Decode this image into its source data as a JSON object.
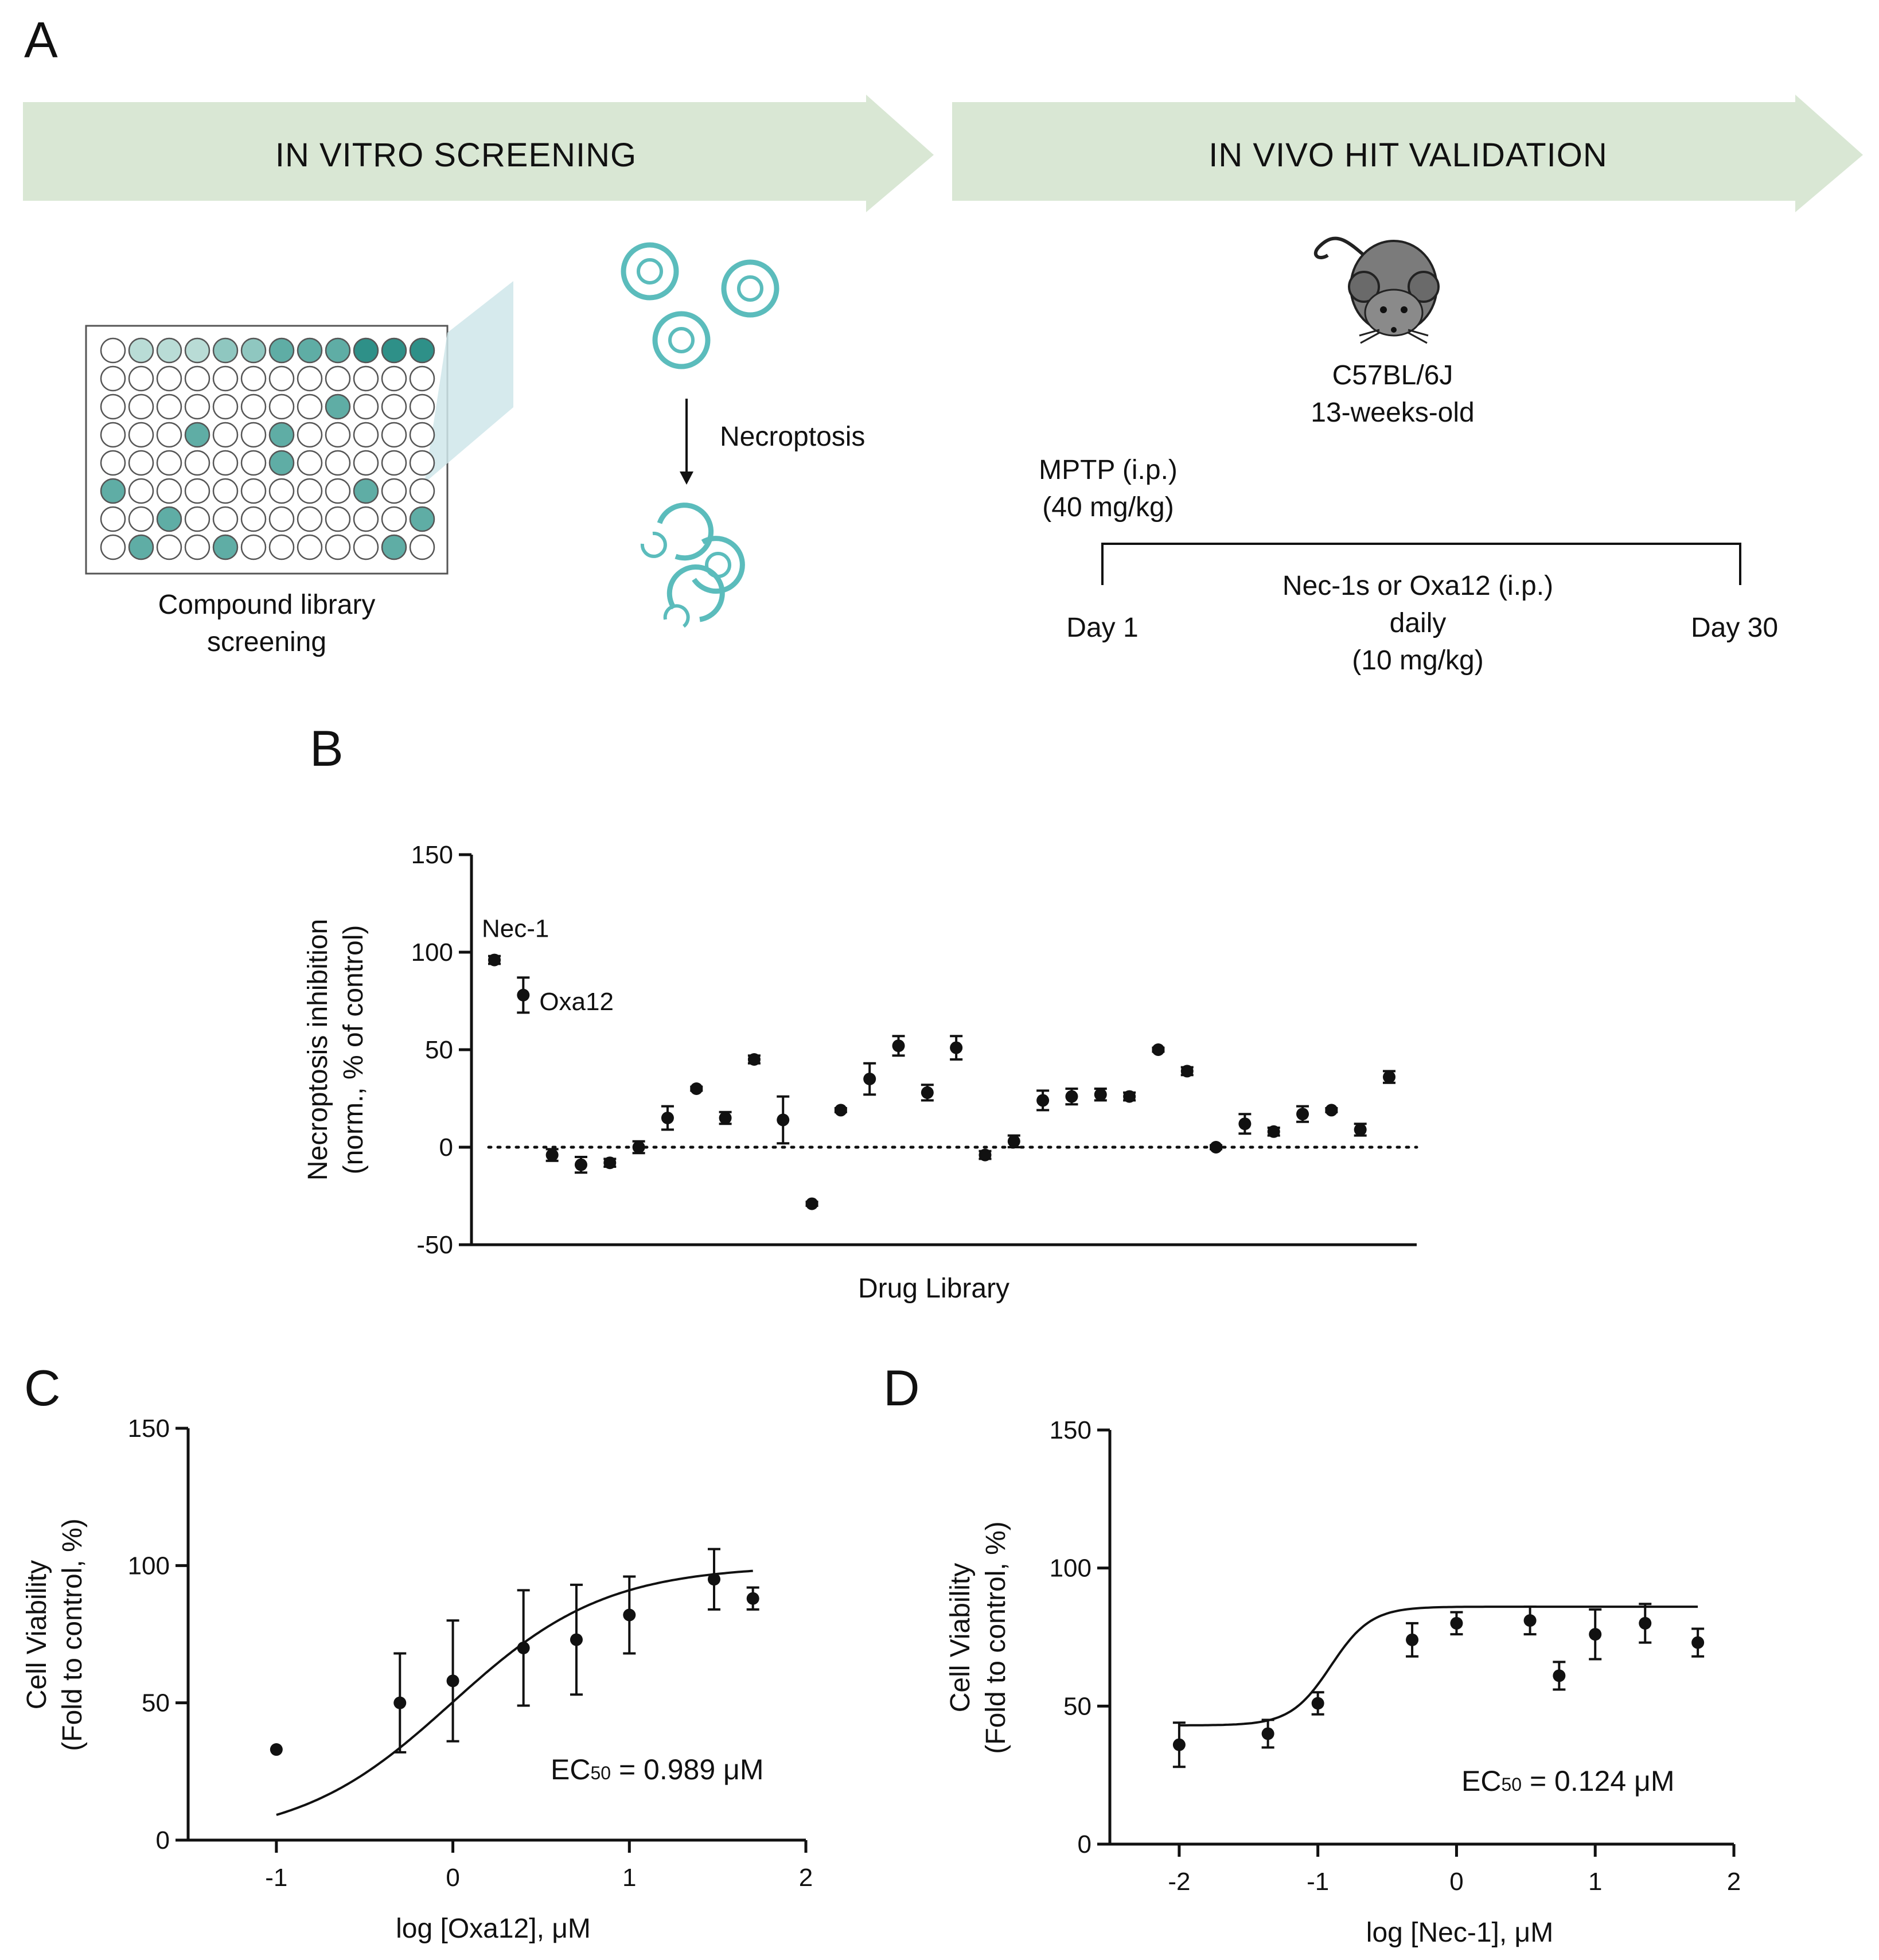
{
  "colors": {
    "banner": "#d9e7d4",
    "teal": "#5bbcbc",
    "well_fill": "#5fada5",
    "well_light": "#b9dcd6",
    "well_mid": "#8fc7c0",
    "well_dark": "#2e9088",
    "mouse_body": "#7b7b7b",
    "ink": "#111111"
  },
  "icons": {
    "mouse": "mouse-icon",
    "plate": "well-plate-icon",
    "cell": "cell-icon",
    "arrow": "arrow-down-icon"
  },
  "panel_a": {
    "letter": "A",
    "banner_left": "IN VITRO SCREENING",
    "banner_right": "IN VIVO HIT VALIDATION",
    "plate_caption_1": "Compound library",
    "plate_caption_2": "screening",
    "necroptosis_label": "Necroptosis",
    "mouse_strain": "C57BL/6J",
    "mouse_age": "13-weeks-old",
    "mptp_line1": "MPTP (i.p.)",
    "mptp_line2": "(40 mg/kg)",
    "day_start": "Day 1",
    "day_end": "Day 30",
    "treatment_line1": "Nec-1s or Oxa12 (i.p.)",
    "treatment_line2": "daily",
    "treatment_line3": "(10 mg/kg)"
  },
  "chart_data": [
    {
      "panel": "B",
      "type": "scatter",
      "xlabel": "Drug Library",
      "ylabel_line1": "Necroptosis inhibition",
      "ylabel_line2": "(norm., % of control)",
      "ylim": [
        -50,
        150
      ],
      "yticks": [
        150,
        100,
        50,
        0,
        -50
      ],
      "reference_line": 0,
      "annotations": [
        {
          "text": "Nec-1",
          "index": 1
        },
        {
          "text": "Oxa12",
          "index": 2
        }
      ],
      "x": [
        1,
        2,
        3,
        4,
        5,
        6,
        7,
        8,
        9,
        10,
        11,
        12,
        13,
        14,
        15,
        16,
        17,
        18,
        19,
        20,
        21,
        22,
        23,
        24,
        25,
        26,
        27,
        28,
        29,
        30,
        31,
        32
      ],
      "values": [
        96,
        78,
        -4,
        -9,
        -8,
        0,
        15,
        30,
        15,
        45,
        14,
        -29,
        19,
        35,
        52,
        28,
        51,
        -4,
        3,
        24,
        26,
        27,
        26,
        50,
        39,
        0,
        12,
        8,
        17,
        19,
        9,
        36
      ],
      "errors": [
        2,
        9,
        3,
        4,
        2,
        3,
        6,
        1,
        3,
        2,
        12,
        1,
        1,
        8,
        5,
        4,
        6,
        2,
        3,
        5,
        4,
        3,
        2,
        1,
        2,
        1,
        5,
        2,
        4,
        1,
        3,
        3
      ]
    },
    {
      "panel": "C",
      "type": "scatter",
      "xlabel": "log [Oxa12], μM",
      "ylabel_line1": "Cell Viability",
      "ylabel_line2": "(Fold to control, %)",
      "xlim": [
        -1.5,
        2
      ],
      "ylim": [
        0,
        150
      ],
      "xticks": [
        -1,
        0,
        1,
        2
      ],
      "yticks": [
        0,
        50,
        100,
        150
      ],
      "x": [
        -1,
        -0.3,
        0,
        0.4,
        0.7,
        1,
        1.48,
        1.7
      ],
      "values": [
        33,
        50,
        58,
        70,
        73,
        82,
        95,
        88
      ],
      "errors": [
        0,
        18,
        22,
        21,
        20,
        14,
        11,
        4
      ],
      "fit": {
        "model": "sigmoid",
        "bottom": 0,
        "top": 100,
        "log_ec50": -0.005,
        "hill": 1,
        "x_range": [
          -1,
          1.7
        ]
      },
      "ec50_prefix": "EC",
      "ec50_sub": "50",
      "ec50_value": " = 0.989 μM"
    },
    {
      "panel": "D",
      "type": "scatter",
      "xlabel": "log [Nec-1], μM",
      "ylabel_line1": "Cell Viability",
      "ylabel_line2": "(Fold to control, %)",
      "xlim": [
        -2.5,
        2
      ],
      "ylim": [
        0,
        150
      ],
      "xticks": [
        -2,
        -1,
        0,
        1,
        2
      ],
      "yticks": [
        0,
        50,
        100,
        150
      ],
      "x": [
        -2,
        -1.36,
        -1,
        -0.32,
        0,
        0.53,
        0.74,
        1,
        1.36,
        1.74
      ],
      "values": [
        36,
        40,
        51,
        74,
        80,
        81,
        61,
        76,
        80,
        73
      ],
      "errors": [
        8,
        5,
        4,
        6,
        4,
        5,
        5,
        9,
        7,
        5
      ],
      "fit": {
        "model": "sigmoid",
        "bottom": 43,
        "top": 86,
        "log_ec50": -0.907,
        "hill": 3,
        "x_range": [
          -2,
          1.74
        ]
      },
      "ec50_prefix": "EC",
      "ec50_sub": "50",
      "ec50_value": " = 0.124 μM"
    }
  ]
}
